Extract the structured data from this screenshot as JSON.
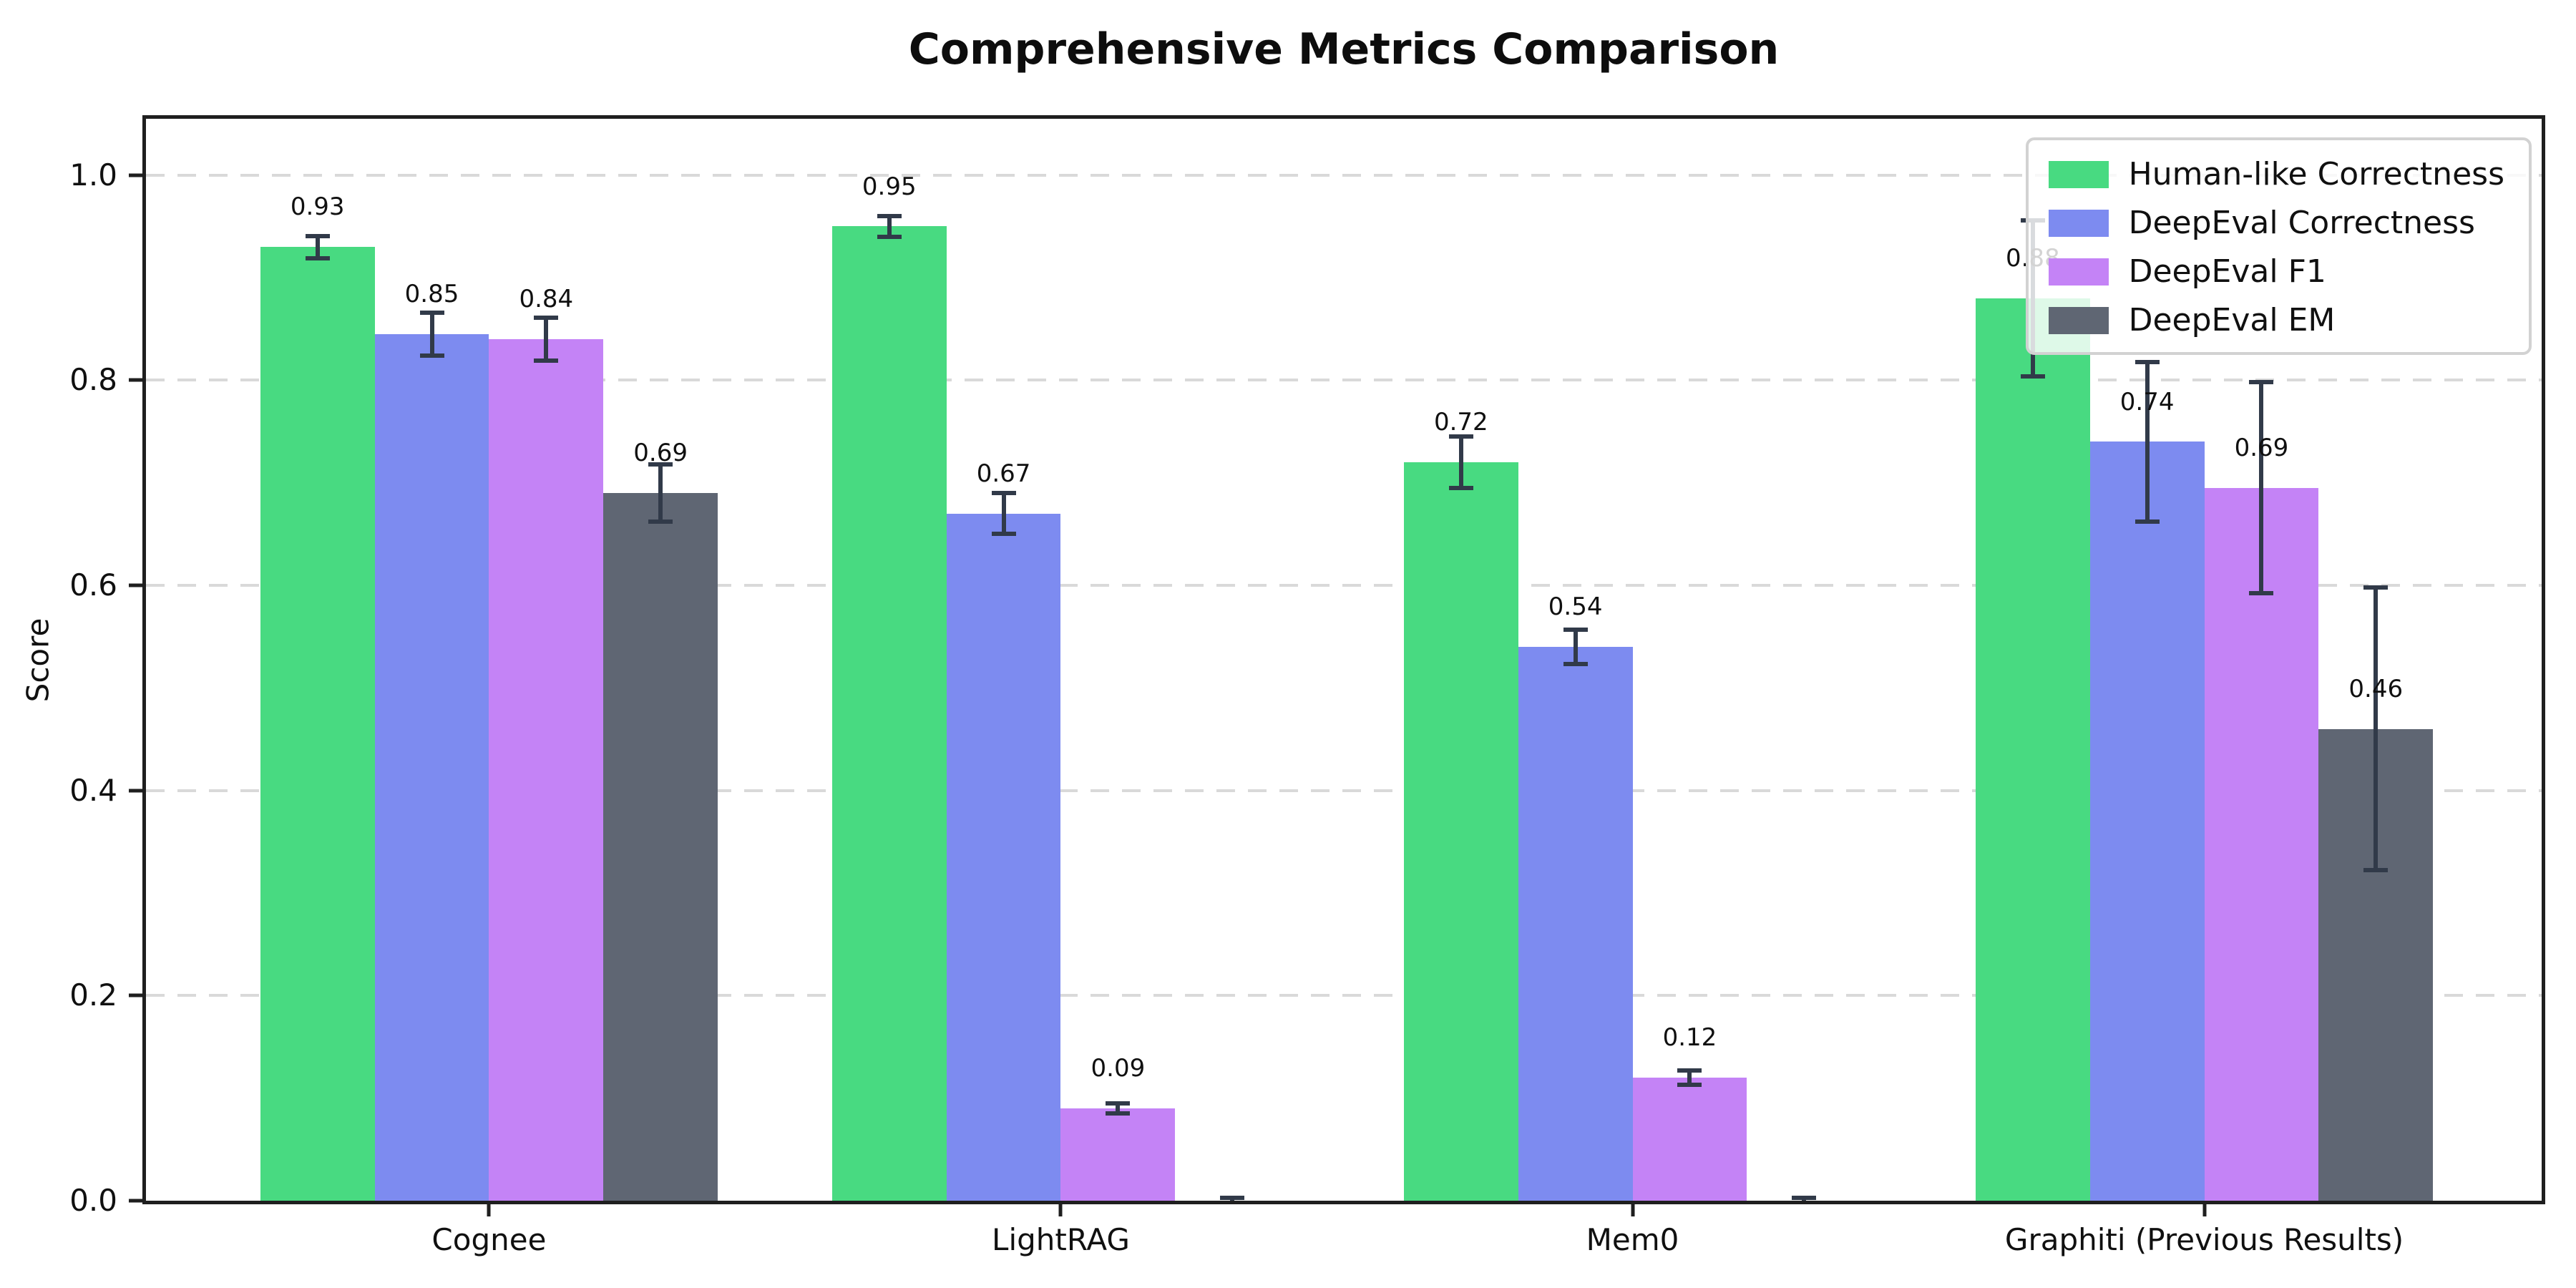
{
  "figure": {
    "title": "Comprehensive Metrics Comparison"
  },
  "chart_data": {
    "type": "bar",
    "title": "Comprehensive Metrics Comparison",
    "xlabel": "",
    "ylabel": "Score",
    "categories": [
      "Cognee",
      "LightRAG",
      "Mem0",
      "Graphiti (Previous Results)"
    ],
    "yticks": [
      0.0,
      0.2,
      0.4,
      0.6,
      0.8,
      1.0
    ],
    "ylim": [
      0,
      1.055
    ],
    "grid": "horizontal dashed",
    "legend_position": "upper right",
    "error_bar_color": "#313a49",
    "series": [
      {
        "name": "Human-like Correctness",
        "color": "#48da81",
        "values": [
          0.93,
          0.95,
          0.72,
          0.88
        ],
        "errors": [
          0.013,
          0.012,
          0.027,
          0.078
        ],
        "labels": [
          "0.93",
          "0.95",
          "0.72",
          "0.88"
        ]
      },
      {
        "name": "DeepEval Correctness",
        "color": "#7d8bf0",
        "values": [
          0.845,
          0.67,
          0.54,
          0.74
        ],
        "errors": [
          0.023,
          0.022,
          0.019,
          0.08
        ],
        "labels": [
          "0.85",
          "0.67",
          "0.54",
          "0.74"
        ]
      },
      {
        "name": "DeepEval F1",
        "color": "#c483f6",
        "values": [
          0.84,
          0.09,
          0.12,
          0.695
        ],
        "errors": [
          0.023,
          0.007,
          0.009,
          0.105
        ],
        "labels": [
          "0.84",
          "0.09",
          "0.12",
          "0.69"
        ]
      },
      {
        "name": "DeepEval EM",
        "color": "#5f6673",
        "values": [
          0.69,
          0.0,
          0.0,
          0.46
        ],
        "errors": [
          0.03,
          0.005,
          0.005,
          0.14
        ],
        "labels": [
          "0.69",
          "",
          "",
          "0.46"
        ]
      }
    ]
  }
}
